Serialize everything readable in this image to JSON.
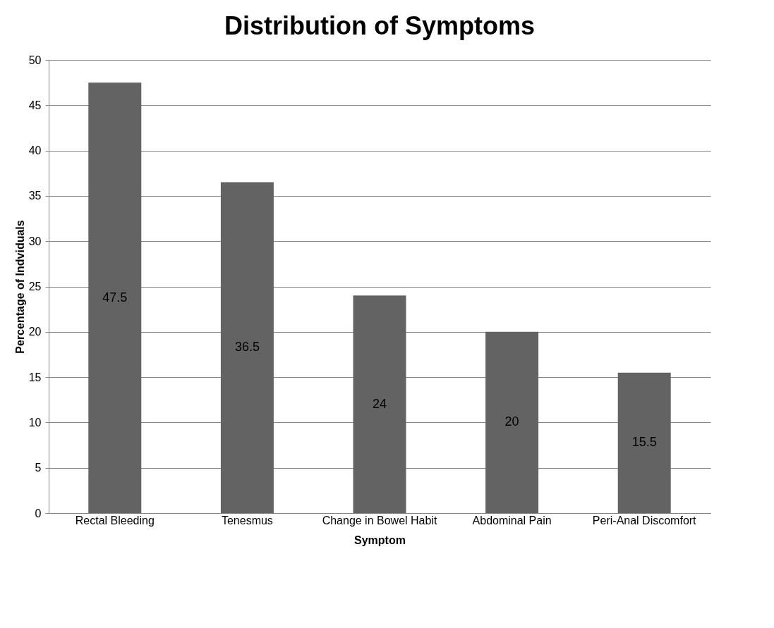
{
  "chart_data": {
    "type": "bar",
    "title": "Distribution of Symptoms",
    "xlabel": "Symptom",
    "ylabel": "Percentage of Indviduals",
    "categories": [
      "Rectal Bleeding",
      "Tenesmus",
      "Change in Bowel Habit",
      "Abdominal Pain",
      "Peri-Anal Discomfort"
    ],
    "values": [
      47.5,
      36.5,
      24,
      20,
      15.5
    ],
    "color": "#636363",
    "ylim": [
      0,
      50
    ],
    "yticks": [
      0,
      5,
      10,
      15,
      20,
      25,
      30,
      35,
      40,
      45,
      50
    ],
    "grid": "y",
    "data_labels": true
  }
}
